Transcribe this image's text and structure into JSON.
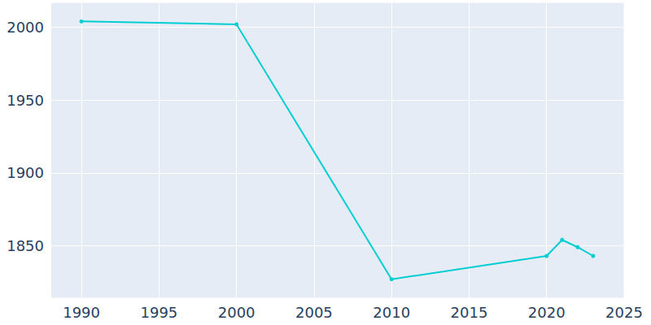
{
  "chart_data": {
    "type": "line",
    "x": [
      1990,
      2000,
      2010,
      2020,
      2021,
      2022,
      2023
    ],
    "values": [
      2004,
      2002,
      1827,
      1843,
      1854,
      1849,
      1843
    ],
    "color": "#00ced1",
    "marker": "circle",
    "xlim": [
      1988,
      2025
    ],
    "xticks": [
      1990,
      1995,
      2000,
      2005,
      2010,
      2015,
      2020,
      2025
    ],
    "ylim": [
      1814,
      2017
    ],
    "yticks": [
      1850,
      1900,
      1950,
      2000
    ],
    "grid": true
  }
}
